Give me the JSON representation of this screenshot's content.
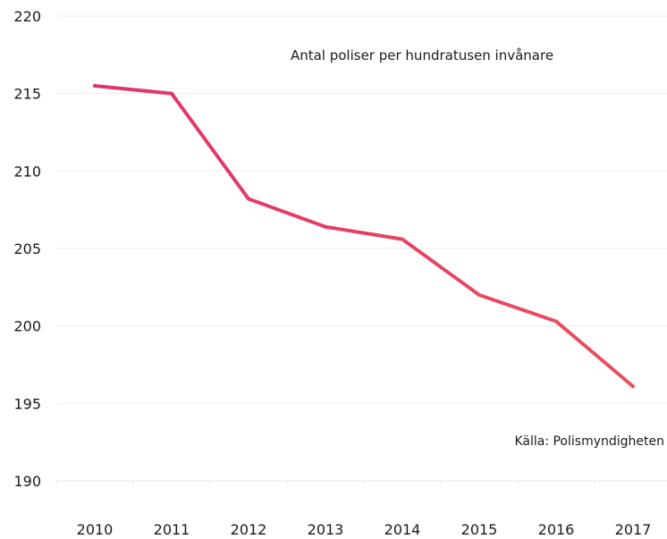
{
  "chart_data": {
    "type": "line",
    "title": "Antal poliser per hundratusen invånare",
    "source": "Källa: Polismyndigheten",
    "categories": [
      "2010",
      "2011",
      "2012",
      "2013",
      "2014",
      "2015",
      "2016",
      "2017"
    ],
    "series": [
      {
        "values": [
          215.5,
          215.0,
          208.2,
          206.4,
          205.6,
          202.0,
          200.3,
          196.1
        ]
      }
    ],
    "ylim": [
      190,
      220
    ],
    "yticks": [
      190,
      195,
      200,
      205,
      210,
      215,
      220
    ],
    "grid": true,
    "colors": {
      "line_start": "#e0336b",
      "line_end": "#e8515e",
      "grid": "#eeeeee",
      "text": "#1a1a1a"
    }
  }
}
